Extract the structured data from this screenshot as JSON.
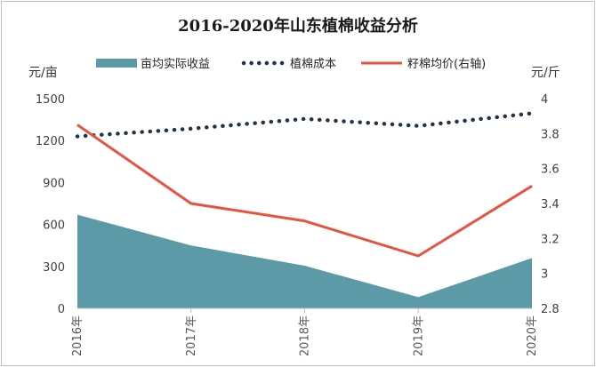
{
  "chart_data": {
    "type": "area+line",
    "title": "2016-2020年山东植棉收益分析",
    "categories": [
      "2016年",
      "2017年",
      "2018年",
      "2019年",
      "2020年"
    ],
    "y_left": {
      "unit": "元/亩",
      "range": [
        0,
        1500
      ],
      "ticks": [
        "0",
        "300",
        "600",
        "900",
        "1200",
        "1500"
      ]
    },
    "y_right": {
      "unit": "元/斤",
      "range": [
        2.8,
        4.0
      ],
      "ticks": [
        "2.8",
        "3",
        "3.2",
        "3.4",
        "3.6",
        "3.8",
        "4"
      ]
    },
    "series": [
      {
        "name": "亩均实际收益",
        "kind": "area",
        "axis": "left",
        "color": "#5b9aa6",
        "values": [
          670,
          450,
          305,
          80,
          360
        ]
      },
      {
        "name": "植棉成本",
        "kind": "dotted-line",
        "axis": "left",
        "color": "#243447",
        "values": [
          1230,
          1285,
          1355,
          1305,
          1395
        ]
      },
      {
        "name": "籽棉均价(右轴)",
        "kind": "line",
        "axis": "right",
        "color": "#e8533f",
        "values": [
          3.85,
          3.4,
          3.3,
          3.1,
          3.5
        ]
      }
    ],
    "legend_position": "top",
    "grid": false
  }
}
